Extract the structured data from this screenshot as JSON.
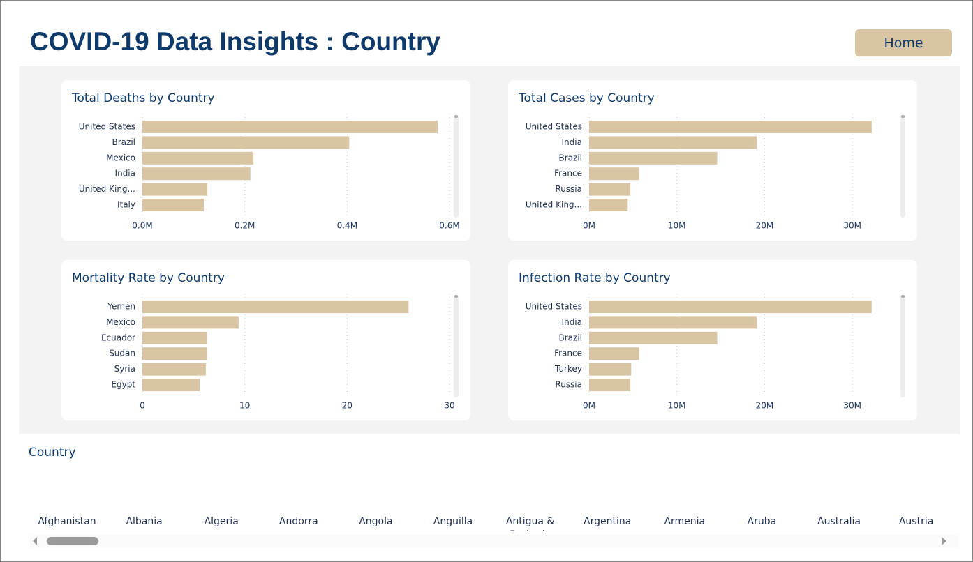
{
  "header": {
    "title": "COVID-19 Data Insights : Country",
    "button": "Home"
  },
  "chart_data": [
    {
      "type": "bar",
      "orientation": "horizontal",
      "title": "Total Deaths by Country",
      "color": "#d9c4a4",
      "grid": true,
      "categories": [
        "United States",
        "Brazil",
        "Mexico",
        "India",
        "United King...",
        "Italy"
      ],
      "values": [
        577000,
        404000,
        217000,
        211000,
        127000,
        120000
      ],
      "xlim": [
        0,
        600000
      ],
      "xticks": [
        {
          "value": 0,
          "label": "0.0M"
        },
        {
          "value": 200000,
          "label": "0.2M"
        },
        {
          "value": 400000,
          "label": "0.4M"
        },
        {
          "value": 600000,
          "label": "0.6M"
        }
      ]
    },
    {
      "type": "bar",
      "orientation": "horizontal",
      "title": "Total Cases by Country",
      "color": "#d9c4a4",
      "grid": true,
      "categories": [
        "United States",
        "India",
        "Brazil",
        "France",
        "Russia",
        "United King..."
      ],
      "values": [
        32200000,
        19100000,
        14600000,
        5700000,
        4700000,
        4400000
      ],
      "xlim": [
        0,
        35000000
      ],
      "xticks": [
        {
          "value": 0,
          "label": "0M"
        },
        {
          "value": 10000000,
          "label": "10M"
        },
        {
          "value": 20000000,
          "label": "20M"
        },
        {
          "value": 30000000,
          "label": "30M"
        }
      ]
    },
    {
      "type": "bar",
      "orientation": "horizontal",
      "title": "Mortality Rate by Country",
      "color": "#d9c4a4",
      "grid": true,
      "categories": [
        "Yemen",
        "Mexico",
        "Ecuador",
        "Sudan",
        "Syria",
        "Egypt"
      ],
      "values": [
        26.0,
        9.4,
        6.3,
        6.3,
        6.2,
        5.6
      ],
      "xlim": [
        0,
        30
      ],
      "xticks": [
        0,
        10,
        20,
        30
      ]
    },
    {
      "type": "bar",
      "orientation": "horizontal",
      "title": "Infection Rate by Country",
      "color": "#d9c4a4",
      "grid": true,
      "categories": [
        "United States",
        "India",
        "Brazil",
        "France",
        "Turkey",
        "Russia"
      ],
      "values": [
        32200000,
        19100000,
        14600000,
        5700000,
        4800000,
        4700000
      ],
      "xlim": [
        0,
        35000000
      ],
      "xticks": [
        {
          "value": 0,
          "label": "0M"
        },
        {
          "value": 10000000,
          "label": "10M"
        },
        {
          "value": 20000000,
          "label": "20M"
        },
        {
          "value": 30000000,
          "label": "30M"
        }
      ]
    }
  ],
  "slicer": {
    "title": "Country",
    "items": [
      "Afghanistan",
      "Albania",
      "Algeria",
      "Andorra",
      "Angola",
      "Anguilla",
      "Antigua & Barbuda",
      "Argentina",
      "Armenia",
      "Aruba",
      "Australia",
      "Austria"
    ]
  }
}
